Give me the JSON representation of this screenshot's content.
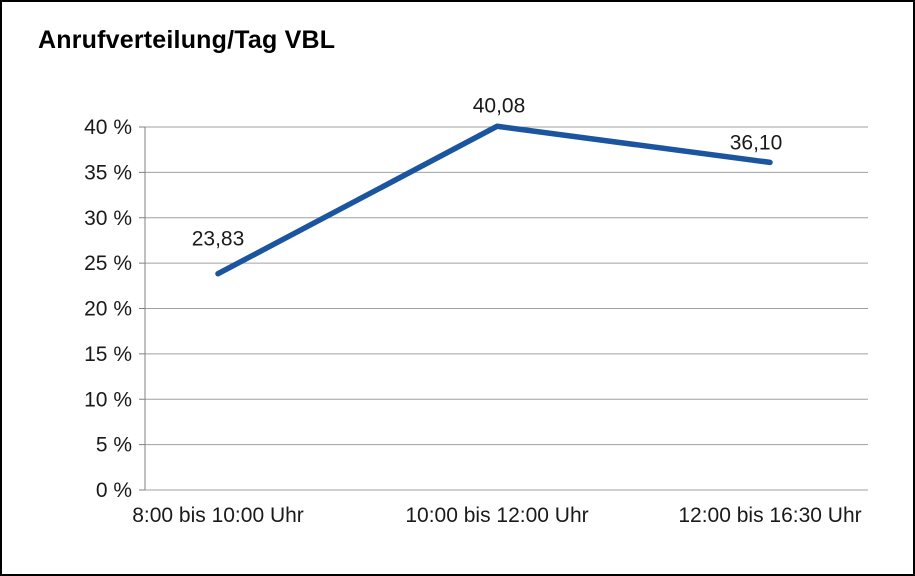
{
  "chart_data": {
    "type": "line",
    "title": "Anrufverteilung/Tag VBL",
    "categories": [
      "8:00 bis 10:00 Uhr",
      "10:00 bis 12:00 Uhr",
      "12:00 bis 16:30 Uhr"
    ],
    "values": [
      23.83,
      40.08,
      36.1
    ],
    "value_labels": [
      "23,83",
      "40,08",
      "36,10"
    ],
    "y_ticks": [
      "0 %",
      "5 %",
      "10 %",
      "15 %",
      "20 %",
      "25 %",
      "30 %",
      "35 %",
      "40 %"
    ],
    "ylim": [
      0,
      40
    ],
    "y_step": 5,
    "grid": true,
    "legend": "none",
    "line_color": "#1b55a0",
    "grid_color": "#a0a0a0",
    "axis_color": "#808080",
    "text_color": "#1a1a1a",
    "background": "#ffffff",
    "border_color": "#000000"
  }
}
